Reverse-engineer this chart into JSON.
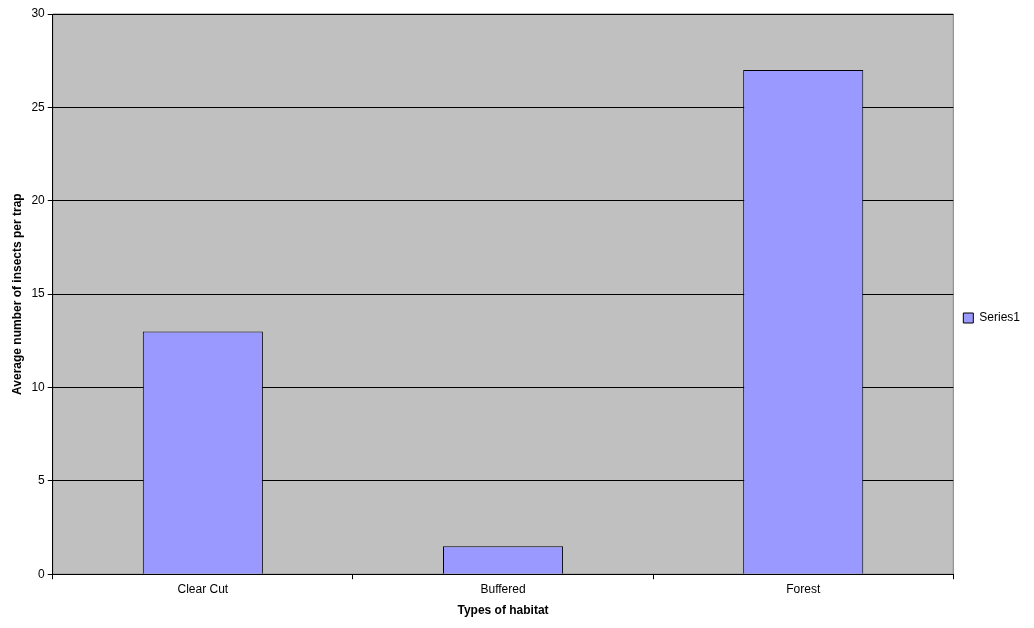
{
  "chart_data": {
    "type": "bar",
    "xlabel": "Types of habitat",
    "ylabel": "Average number of insects per trap",
    "categories": [
      "Clear Cut",
      "Buffered",
      "Forest"
    ],
    "series": [
      {
        "name": "Series1",
        "color": "#9999ff",
        "values": [
          13,
          1.5,
          27
        ]
      }
    ],
    "ylim": [
      0,
      30
    ],
    "yticks": [
      0,
      5,
      10,
      15,
      20,
      25,
      30
    ],
    "grid": "y",
    "legend": "right"
  }
}
